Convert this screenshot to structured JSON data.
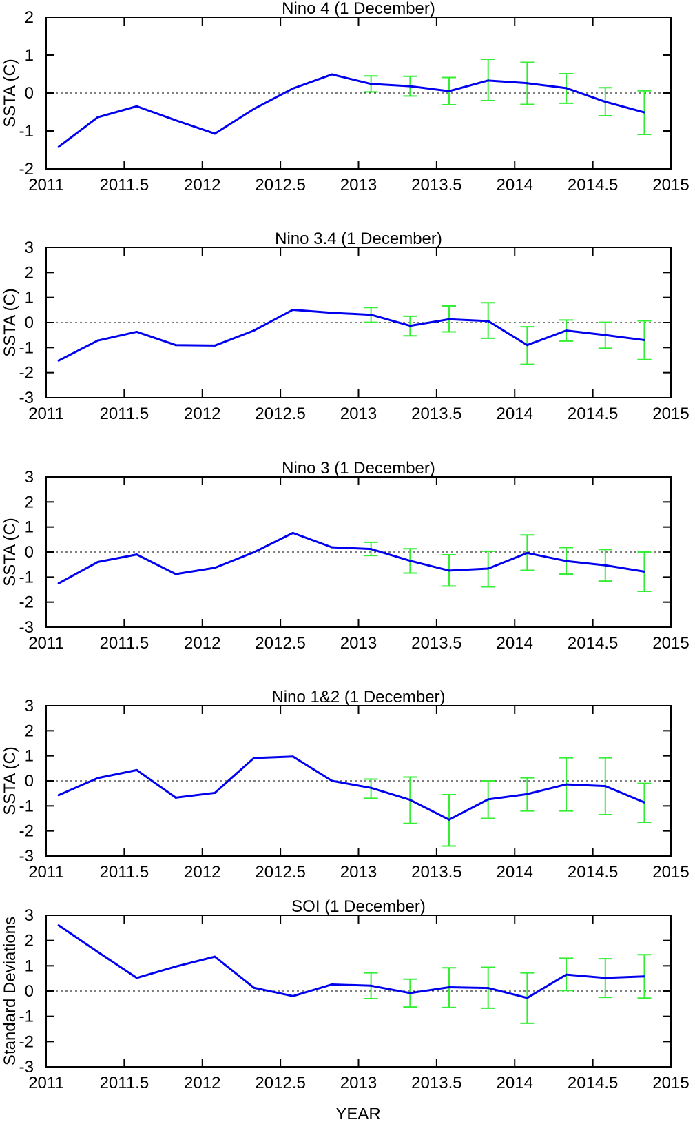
{
  "colors": {
    "line": "#0000ee",
    "errorbar": "#33ee33",
    "axis": "#000000",
    "zero_line": "#000000"
  },
  "xlabel": "YEAR",
  "x_ticks": [
    2011,
    2011.5,
    2012,
    2012.5,
    2013,
    2013.5,
    2014,
    2014.5,
    2015
  ],
  "x_tick_labels": [
    "2011",
    "2011.5",
    "2012",
    "2012.5",
    "2013",
    "2013.5",
    "2014",
    "2014.5",
    "2015"
  ],
  "chart_data": [
    {
      "type": "line",
      "title": "Nino 4 (1 December)",
      "ylabel": "SSTA (C)",
      "xlim": [
        2011,
        2015
      ],
      "ylim": [
        -2,
        2
      ],
      "y_ticks": [
        -2,
        -1,
        0,
        1,
        2
      ],
      "x": [
        2011.08,
        2011.33,
        2011.58,
        2011.83,
        2012.08,
        2012.33,
        2012.58,
        2012.83,
        2013.08,
        2013.33,
        2013.58,
        2013.83,
        2014.08,
        2014.33,
        2014.58,
        2014.83
      ],
      "values": [
        -1.42,
        -0.64,
        -0.35,
        -0.72,
        -1.07,
        -0.42,
        0.12,
        0.49,
        0.24,
        0.18,
        0.05,
        0.33,
        0.26,
        0.13,
        -0.23,
        -0.51
      ],
      "error_x": [
        2013.08,
        2013.33,
        2013.58,
        2013.83,
        2014.08,
        2014.33,
        2014.58,
        2014.83
      ],
      "error_low": [
        0.03,
        -0.08,
        -0.31,
        -0.2,
        -0.3,
        -0.27,
        -0.6,
        -1.09
      ],
      "error_high": [
        0.45,
        0.44,
        0.41,
        0.89,
        0.81,
        0.51,
        0.14,
        0.06
      ]
    },
    {
      "type": "line",
      "title": "Nino 3.4 (1 December)",
      "ylabel": "SSTA (C)",
      "xlim": [
        2011,
        2015
      ],
      "ylim": [
        -3,
        3
      ],
      "y_ticks": [
        -3,
        -2,
        -1,
        0,
        1,
        2,
        3
      ],
      "x": [
        2011.08,
        2011.33,
        2011.58,
        2011.83,
        2012.08,
        2012.33,
        2012.58,
        2012.83,
        2013.08,
        2013.33,
        2013.58,
        2013.83,
        2014.08,
        2014.33,
        2014.58,
        2014.83
      ],
      "values": [
        -1.52,
        -0.72,
        -0.37,
        -0.9,
        -0.92,
        -0.32,
        0.51,
        0.39,
        0.31,
        -0.13,
        0.13,
        0.06,
        -0.9,
        -0.32,
        -0.5,
        -0.7
      ],
      "error_x": [
        2013.08,
        2013.33,
        2013.58,
        2013.83,
        2014.08,
        2014.33,
        2014.58,
        2014.83
      ],
      "error_low": [
        0.01,
        -0.53,
        -0.37,
        -0.63,
        -1.67,
        -0.74,
        -1.03,
        -1.48
      ],
      "error_high": [
        0.6,
        0.25,
        0.66,
        0.79,
        -0.17,
        0.1,
        0.01,
        0.07
      ]
    },
    {
      "type": "line",
      "title": "Nino 3 (1 December)",
      "ylabel": "SSTA (C)",
      "xlim": [
        2011,
        2015
      ],
      "ylim": [
        -3,
        3
      ],
      "y_ticks": [
        -3,
        -2,
        -1,
        0,
        1,
        2,
        3
      ],
      "x": [
        2011.08,
        2011.33,
        2011.58,
        2011.83,
        2012.08,
        2012.33,
        2012.58,
        2012.83,
        2013.08,
        2013.33,
        2013.58,
        2013.83,
        2014.08,
        2014.33,
        2014.58,
        2014.83
      ],
      "values": [
        -1.25,
        -0.4,
        -0.1,
        -0.88,
        -0.63,
        -0.01,
        0.76,
        0.19,
        0.12,
        -0.35,
        -0.74,
        -0.66,
        -0.04,
        -0.36,
        -0.53,
        -0.78
      ],
      "error_x": [
        2013.08,
        2013.33,
        2013.58,
        2013.83,
        2014.08,
        2014.33,
        2014.58,
        2014.83
      ],
      "error_low": [
        -0.14,
        -0.84,
        -1.36,
        -1.39,
        -0.73,
        -0.88,
        -1.16,
        -1.57
      ],
      "error_high": [
        0.39,
        0.13,
        -0.11,
        0.03,
        0.68,
        0.18,
        0.1,
        0.0
      ]
    },
    {
      "type": "line",
      "title": "Nino 1&2 (1 December)",
      "ylabel": "SSTA (C)",
      "xlim": [
        2011,
        2015
      ],
      "ylim": [
        -3,
        3
      ],
      "y_ticks": [
        -3,
        -2,
        -1,
        0,
        1,
        2,
        3
      ],
      "x": [
        2011.08,
        2011.33,
        2011.58,
        2011.83,
        2012.08,
        2012.33,
        2012.58,
        2012.83,
        2013.08,
        2013.33,
        2013.58,
        2013.83,
        2014.08,
        2014.33,
        2014.58,
        2014.83
      ],
      "values": [
        -0.57,
        0.11,
        0.43,
        -0.67,
        -0.48,
        0.91,
        0.97,
        0.0,
        -0.28,
        -0.76,
        -1.55,
        -0.74,
        -0.53,
        -0.14,
        -0.21,
        -0.86
      ],
      "error_x": [
        2013.08,
        2013.33,
        2013.58,
        2013.83,
        2014.08,
        2014.33,
        2014.58,
        2014.83
      ],
      "error_low": [
        -0.7,
        -1.7,
        -2.6,
        -1.5,
        -1.2,
        -1.2,
        -1.35,
        -1.65
      ],
      "error_high": [
        0.07,
        0.15,
        -0.55,
        0.0,
        0.12,
        0.92,
        0.92,
        -0.1
      ]
    },
    {
      "type": "line",
      "title": "SOI (1 December)",
      "ylabel": "Standard Deviations",
      "xlim": [
        2011,
        2015
      ],
      "ylim": [
        -3,
        3
      ],
      "y_ticks": [
        -3,
        -2,
        -1,
        0,
        1,
        2,
        3
      ],
      "x": [
        2011.08,
        2011.33,
        2011.58,
        2011.83,
        2012.08,
        2012.33,
        2012.58,
        2012.83,
        2013.08,
        2013.33,
        2013.58,
        2013.83,
        2014.08,
        2014.33,
        2014.58,
        2014.83
      ],
      "values": [
        2.6,
        1.55,
        0.52,
        0.97,
        1.36,
        0.13,
        -0.2,
        0.26,
        0.21,
        -0.08,
        0.15,
        0.12,
        -0.27,
        0.65,
        0.52,
        0.58
      ],
      "error_x": [
        2013.08,
        2013.33,
        2013.58,
        2013.83,
        2014.08,
        2014.33,
        2014.58,
        2014.83
      ],
      "error_low": [
        -0.3,
        -0.63,
        -0.65,
        -0.68,
        -1.28,
        0.02,
        -0.25,
        -0.28
      ],
      "error_high": [
        0.72,
        0.47,
        0.92,
        0.94,
        0.72,
        1.3,
        1.28,
        1.44
      ]
    }
  ]
}
